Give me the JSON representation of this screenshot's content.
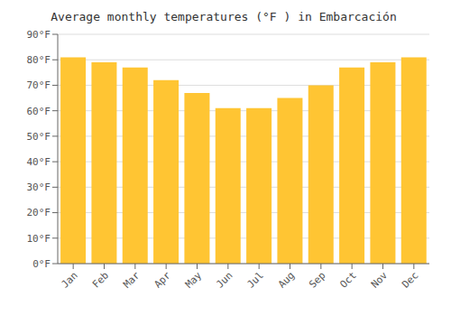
{
  "chart_data": {
    "type": "bar",
    "title": "Average monthly temperatures (°F ) in Embarcación",
    "categories": [
      "Jan",
      "Feb",
      "Mar",
      "Apr",
      "May",
      "Jun",
      "Jul",
      "Aug",
      "Sep",
      "Oct",
      "Nov",
      "Dec"
    ],
    "values": [
      81,
      79,
      77,
      72,
      67,
      61,
      61,
      65,
      70,
      77,
      79,
      81
    ],
    "color": "#FFC533",
    "ylim": [
      0,
      90
    ],
    "yticks": [
      {
        "value": 0,
        "label": "0°F"
      },
      {
        "value": 10,
        "label": "10°F"
      },
      {
        "value": 20,
        "label": "20°F"
      },
      {
        "value": 30,
        "label": "30°F"
      },
      {
        "value": 40,
        "label": "40°F"
      },
      {
        "value": 50,
        "label": "50°F"
      },
      {
        "value": 60,
        "label": "60°F"
      },
      {
        "value": 70,
        "label": "70°F"
      },
      {
        "value": 80,
        "label": "80°F"
      },
      {
        "value": 90,
        "label": "90°F"
      }
    ],
    "grid": true
  }
}
